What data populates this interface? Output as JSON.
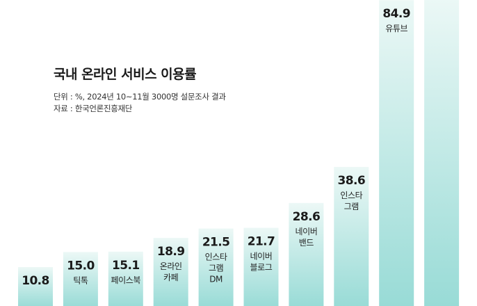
{
  "chart_data": {
    "type": "bar",
    "title": "국내 온라인 서비스 이용률",
    "unit_note": "단위 : %, 2024년 10~11월 3000명 설문조사 결과",
    "source_note": "자료 : 한국언론진흥재단",
    "categories": [
      "",
      "틱톡",
      "페이스북",
      "온라인\n카페",
      "인스타\n그램\nDM",
      "네이버\n블로그",
      "네이버\n밴드",
      "인스타\n그램",
      "유튜브",
      ""
    ],
    "values": [
      10.8,
      15.0,
      15.1,
      18.9,
      21.5,
      21.7,
      28.6,
      38.6,
      84.9,
      null
    ],
    "value_labels": [
      "10.8",
      "15.0",
      "15.1",
      "18.9",
      "21.5",
      "21.7",
      "28.6",
      "38.6",
      "84.9",
      ""
    ],
    "ylim": [
      0,
      100
    ],
    "bar_color": "#98dbd6",
    "bar_color_light": "#ecf8f6",
    "text_color": "#1a1a1a"
  }
}
